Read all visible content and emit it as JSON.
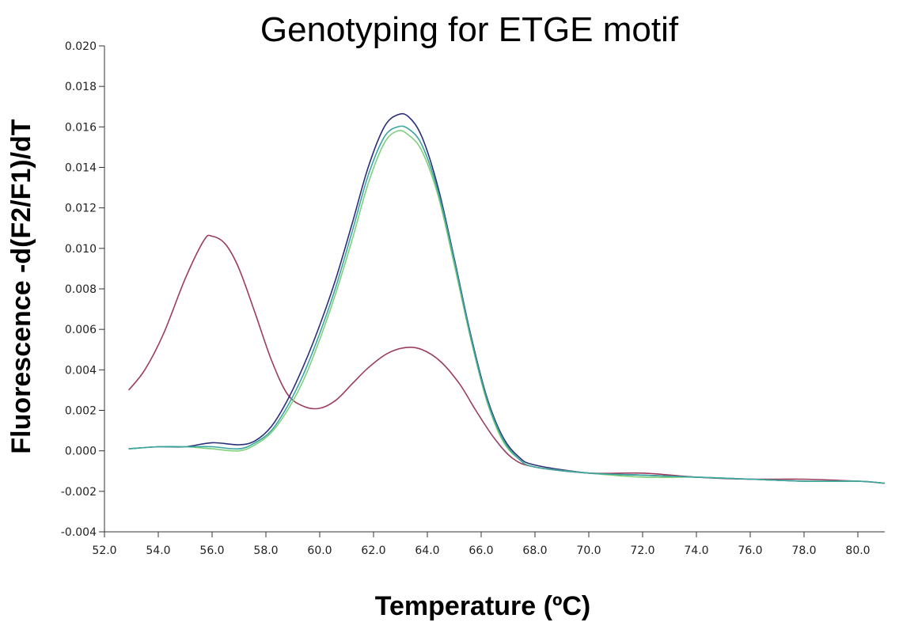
{
  "chart_data": {
    "type": "line",
    "title": "Genotyping for ETGE motif",
    "xlabel": "Temperature (ºC)",
    "ylabel": "Fluorescence -d(F2/F1)/dT",
    "xlim": [
      52.0,
      81.0
    ],
    "ylim": [
      -0.004,
      0.02
    ],
    "x_ticks": [
      "52.0",
      "54.0",
      "56.0",
      "58.0",
      "60.0",
      "62.0",
      "64.0",
      "66.0",
      "68.0",
      "70.0",
      "72.0",
      "74.0",
      "76.0",
      "78.0",
      "80.0"
    ],
    "y_ticks": [
      "-0.004",
      "-0.002",
      "0.000",
      "0.002",
      "0.004",
      "0.006",
      "0.008",
      "0.010",
      "0.012",
      "0.014",
      "0.016",
      "0.018",
      "0.020"
    ],
    "grid": false,
    "legend": "none",
    "series": [
      {
        "color": "#9b3d5c",
        "points": [
          [
            52.9,
            0.003
          ],
          [
            53.5,
            0.004
          ],
          [
            54.2,
            0.0058
          ],
          [
            55.0,
            0.0085
          ],
          [
            55.7,
            0.0104
          ],
          [
            56.0,
            0.0106
          ],
          [
            56.5,
            0.0102
          ],
          [
            57.0,
            0.009
          ],
          [
            57.6,
            0.0068
          ],
          [
            58.2,
            0.0045
          ],
          [
            58.8,
            0.0028
          ],
          [
            59.4,
            0.0022
          ],
          [
            60.0,
            0.0021
          ],
          [
            60.6,
            0.0025
          ],
          [
            61.2,
            0.0033
          ],
          [
            61.8,
            0.0041
          ],
          [
            62.5,
            0.0048
          ],
          [
            63.2,
            0.0051
          ],
          [
            63.8,
            0.005
          ],
          [
            64.5,
            0.0044
          ],
          [
            65.2,
            0.0033
          ],
          [
            65.8,
            0.002
          ],
          [
            66.5,
            0.0006
          ],
          [
            67.2,
            -0.0004
          ],
          [
            68.0,
            -0.0008
          ],
          [
            70.0,
            -0.0011
          ],
          [
            72.0,
            -0.0011
          ],
          [
            74.0,
            -0.0013
          ],
          [
            76.0,
            -0.0014
          ],
          [
            78.0,
            -0.0014
          ],
          [
            80.0,
            -0.0015
          ],
          [
            81.0,
            -0.0016
          ]
        ]
      },
      {
        "color": "#2b2f7a",
        "points": [
          [
            52.9,
            0.0001
          ],
          [
            54.0,
            0.0002
          ],
          [
            55.0,
            0.0002
          ],
          [
            56.0,
            0.0004
          ],
          [
            57.0,
            0.0003
          ],
          [
            57.6,
            0.0005
          ],
          [
            58.2,
            0.0012
          ],
          [
            58.8,
            0.0025
          ],
          [
            59.4,
            0.0042
          ],
          [
            60.0,
            0.0062
          ],
          [
            60.6,
            0.0085
          ],
          [
            61.2,
            0.0112
          ],
          [
            61.8,
            0.014
          ],
          [
            62.4,
            0.016
          ],
          [
            62.9,
            0.0166
          ],
          [
            63.3,
            0.0165
          ],
          [
            63.8,
            0.0155
          ],
          [
            64.4,
            0.013
          ],
          [
            65.0,
            0.0095
          ],
          [
            65.6,
            0.0058
          ],
          [
            66.2,
            0.0027
          ],
          [
            66.8,
            0.0007
          ],
          [
            67.4,
            -0.0003
          ],
          [
            68.0,
            -0.0007
          ],
          [
            70.0,
            -0.0011
          ],
          [
            72.0,
            -0.0012
          ],
          [
            74.0,
            -0.0013
          ],
          [
            76.0,
            -0.0014
          ],
          [
            78.0,
            -0.0015
          ],
          [
            80.0,
            -0.0015
          ],
          [
            81.0,
            -0.0016
          ]
        ]
      },
      {
        "color": "#7ed07a",
        "points": [
          [
            52.9,
            0.0001
          ],
          [
            54.0,
            0.0002
          ],
          [
            55.0,
            0.0002
          ],
          [
            56.0,
            0.0001
          ],
          [
            57.0,
            0.0
          ],
          [
            57.6,
            0.0003
          ],
          [
            58.2,
            0.0009
          ],
          [
            58.8,
            0.002
          ],
          [
            59.4,
            0.0035
          ],
          [
            60.0,
            0.0055
          ],
          [
            60.6,
            0.0078
          ],
          [
            61.2,
            0.0104
          ],
          [
            61.8,
            0.0132
          ],
          [
            62.4,
            0.0152
          ],
          [
            62.9,
            0.0158
          ],
          [
            63.3,
            0.0156
          ],
          [
            63.8,
            0.0148
          ],
          [
            64.4,
            0.0126
          ],
          [
            65.0,
            0.0092
          ],
          [
            65.6,
            0.0056
          ],
          [
            66.2,
            0.0025
          ],
          [
            66.8,
            0.0005
          ],
          [
            67.4,
            -0.0004
          ],
          [
            68.0,
            -0.0008
          ],
          [
            70.0,
            -0.0011
          ],
          [
            72.0,
            -0.0013
          ],
          [
            74.0,
            -0.0013
          ],
          [
            76.0,
            -0.0014
          ],
          [
            78.0,
            -0.0015
          ],
          [
            80.0,
            -0.0015
          ],
          [
            81.0,
            -0.0016
          ]
        ]
      },
      {
        "color": "#3aa6a0",
        "points": [
          [
            52.9,
            0.0001
          ],
          [
            54.0,
            0.0002
          ],
          [
            55.0,
            0.0002
          ],
          [
            56.0,
            0.0002
          ],
          [
            57.0,
            0.0001
          ],
          [
            57.6,
            0.0004
          ],
          [
            58.2,
            0.001
          ],
          [
            58.8,
            0.0022
          ],
          [
            59.4,
            0.0038
          ],
          [
            60.0,
            0.0058
          ],
          [
            60.6,
            0.0081
          ],
          [
            61.2,
            0.0108
          ],
          [
            61.8,
            0.0136
          ],
          [
            62.4,
            0.0155
          ],
          [
            62.9,
            0.016
          ],
          [
            63.3,
            0.0159
          ],
          [
            63.8,
            0.0151
          ],
          [
            64.4,
            0.0128
          ],
          [
            65.0,
            0.0094
          ],
          [
            65.6,
            0.0057
          ],
          [
            66.2,
            0.0026
          ],
          [
            66.8,
            0.0006
          ],
          [
            67.4,
            -0.0004
          ],
          [
            68.0,
            -0.0008
          ],
          [
            70.0,
            -0.0011
          ],
          [
            72.0,
            -0.0012
          ],
          [
            74.0,
            -0.0013
          ],
          [
            76.0,
            -0.0014
          ],
          [
            78.0,
            -0.0015
          ],
          [
            80.0,
            -0.0015
          ],
          [
            81.0,
            -0.0016
          ]
        ]
      }
    ]
  }
}
